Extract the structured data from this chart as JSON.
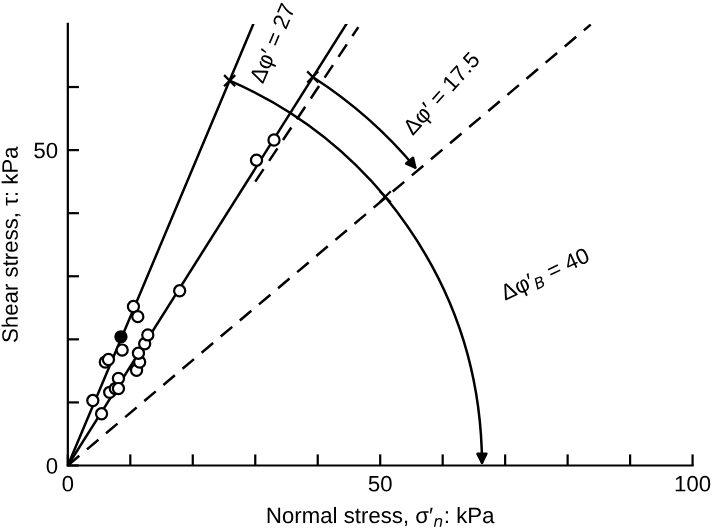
{
  "chart_data": {
    "type": "line",
    "xlabel": "Normal stress, σ′$_{n}$: kPa",
    "ylabel": "Shear stress, τ: kPa",
    "xlim": [
      0,
      100
    ],
    "ylim": [
      0,
      70
    ],
    "xticks": [
      0,
      {
        "value": 10,
        "label": null
      },
      {
        "value": 20,
        "label": null
      },
      {
        "value": 30,
        "label": null
      },
      {
        "value": 40,
        "label": null
      },
      50,
      {
        "value": 60,
        "label": null
      },
      {
        "value": 70,
        "label": null
      },
      {
        "value": 80,
        "label": null
      },
      {
        "value": 90,
        "label": null
      },
      100
    ],
    "yticks": [
      0,
      {
        "value": 10,
        "label": null
      },
      {
        "value": 20,
        "label": null
      },
      {
        "value": 30,
        "label": null
      },
      {
        "value": 40,
        "label": null
      },
      50,
      {
        "value": 60,
        "label": null
      }
    ],
    "grid": false,
    "legend": false,
    "series": [
      {
        "color": "#000000",
        "line_style": "solid",
        "x": [
          0,
          29.7
        ],
        "values": [
          0,
          70
        ]
      },
      {
        "color": "#000000",
        "line_style": "solid",
        "x": [
          0,
          44.6
        ],
        "values": [
          0,
          70
        ]
      },
      {
        "color": "#000000",
        "line_style": "dashed",
        "x": [
          30,
          46.5
        ],
        "values": [
          45,
          69.5
        ]
      },
      {
        "color": "#000000",
        "line_style": "dashed",
        "x": [
          0,
          83.7
        ],
        "values": [
          0,
          69.9
        ]
      },
      {
        "type": "scatter",
        "color": "#000000",
        "marker": "cross",
        "x": [
          25.9,
          39.2,
          50.8
        ],
        "values": [
          61.0,
          61.6,
          42.6
        ]
      },
      {
        "type": "scatter",
        "color": "#000000",
        "marker": "circle",
        "x": [
          4.0,
          5.4,
          6.0,
          6.5,
          6.7,
          7.6,
          8.1,
          8.1,
          8.5,
          8.7,
          10.5,
          11.2,
          11.0,
          11.5,
          11.3,
          12.3,
          12.8,
          17.9,
          30.2,
          33.0
        ],
        "values": [
          10.3,
          8.2,
          16.4,
          16.8,
          11.6,
          12.2,
          13.8,
          12.2,
          20.4,
          18.3,
          25.2,
          23.6,
          15.1,
          16.4,
          17.8,
          19.3,
          20.7,
          27.7,
          48.4,
          51.6
        ],
        "colors": [
          "#ffffff",
          "#ffffff",
          "#ffffff",
          "#ffffff",
          "#ffffff",
          "#ffffff",
          "#ffffff",
          "#ffffff",
          "#000000",
          "#ffffff",
          "#ffffff",
          "#ffffff",
          "#ffffff",
          "#ffffff",
          "#ffffff",
          "#ffffff",
          "#ffffff",
          "#ffffff",
          "#ffffff",
          "#ffffff"
        ]
      }
    ],
    "annotations": [
      {
        "text": "Δφ′ = 27",
        "x": 50.8,
        "y": 42.6
      },
      {
        "text": "Δφ′ = 17.5",
        "x": 55.9,
        "y": 46.9
      },
      "Δφ′$_{B}$ = 40"
    ]
  }
}
